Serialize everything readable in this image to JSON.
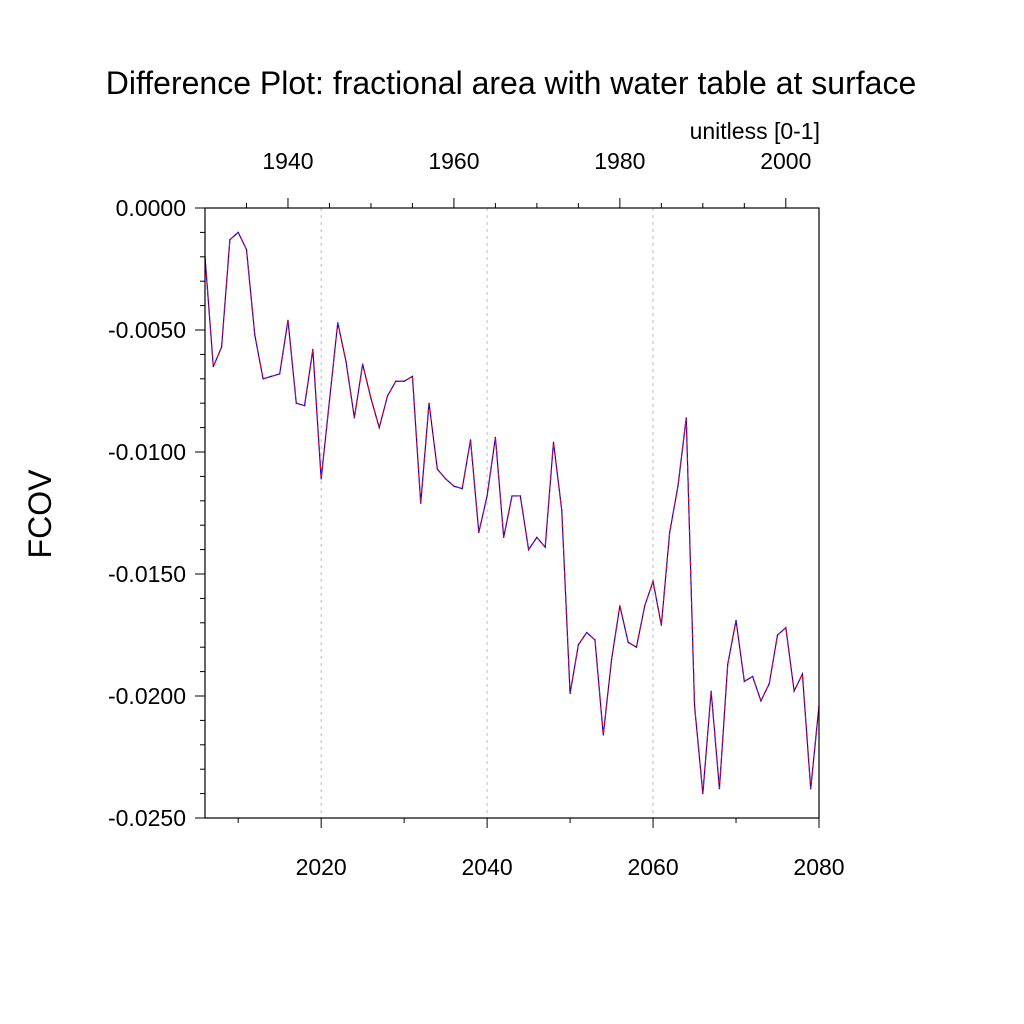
{
  "chart_data": {
    "type": "line",
    "title": "Difference Plot: fractional area with water table at surface",
    "units_label": "unitless [0-1]",
    "ylabel": "FCOV",
    "ylim": [
      -0.025,
      0.0
    ],
    "y_ticks": [
      "0.0000",
      "-0.0050",
      "-0.0100",
      "-0.0150",
      "-0.0200",
      "-0.0250"
    ],
    "y_tick_values": [
      0.0,
      -0.005,
      -0.01,
      -0.015,
      -0.02,
      -0.025
    ],
    "x_bottom": {
      "range": [
        2006,
        2080
      ],
      "ticks": [
        "2020",
        "2040",
        "2060",
        "2080"
      ],
      "tick_values": [
        2020,
        2040,
        2060,
        2080
      ],
      "color": "#ff0000"
    },
    "x_top": {
      "range": [
        1930,
        2004
      ],
      "ticks": [
        "1940",
        "1960",
        "1980",
        "2000"
      ],
      "tick_values": [
        1940,
        1960,
        1980,
        2000
      ],
      "color": "#0000ff"
    },
    "vertical_grid_years": [
      2020,
      2040,
      2060
    ],
    "series": [
      {
        "line_colors": [
          "#ff0000",
          "#0000ff"
        ],
        "x": [
          2006,
          2007,
          2008,
          2009,
          2010,
          2011,
          2012,
          2013,
          2014,
          2015,
          2016,
          2017,
          2018,
          2019,
          2020,
          2021,
          2022,
          2023,
          2024,
          2025,
          2026,
          2027,
          2028,
          2029,
          2030,
          2031,
          2032,
          2033,
          2034,
          2035,
          2036,
          2037,
          2038,
          2039,
          2040,
          2041,
          2042,
          2043,
          2044,
          2045,
          2046,
          2047,
          2048,
          2049,
          2050,
          2051,
          2052,
          2053,
          2054,
          2055,
          2056,
          2057,
          2058,
          2059,
          2060,
          2061,
          2062,
          2063,
          2064,
          2065,
          2066,
          2067,
          2068,
          2069,
          2070,
          2071,
          2072,
          2073,
          2074,
          2075,
          2076,
          2077,
          2078,
          2079,
          2080
        ],
        "values": [
          -0.002,
          -0.0065,
          -0.0057,
          -0.0013,
          -0.001,
          -0.0017,
          -0.0052,
          -0.007,
          -0.0069,
          -0.0068,
          -0.0046,
          -0.008,
          -0.0081,
          -0.0058,
          -0.0111,
          -0.0079,
          -0.0047,
          -0.0063,
          -0.0086,
          -0.0064,
          -0.0078,
          -0.009,
          -0.0077,
          -0.0071,
          -0.0071,
          -0.0069,
          -0.0121,
          -0.008,
          -0.0107,
          -0.0111,
          -0.0114,
          -0.0115,
          -0.0095,
          -0.0133,
          -0.0118,
          -0.0094,
          -0.0135,
          -0.0118,
          -0.0118,
          -0.014,
          -0.0135,
          -0.0139,
          -0.0096,
          -0.0124,
          -0.0199,
          -0.0179,
          -0.0174,
          -0.0177,
          -0.0216,
          -0.0185,
          -0.0163,
          -0.0178,
          -0.018,
          -0.0163,
          -0.0153,
          -0.0171,
          -0.0133,
          -0.0114,
          -0.0086,
          -0.0204,
          -0.024,
          -0.0198,
          -0.0238,
          -0.0187,
          -0.0169,
          -0.0194,
          -0.0192,
          -0.0202,
          -0.0195,
          -0.0175,
          -0.0172,
          -0.0198,
          -0.0191,
          -0.0238,
          -0.0204
        ]
      }
    ]
  }
}
